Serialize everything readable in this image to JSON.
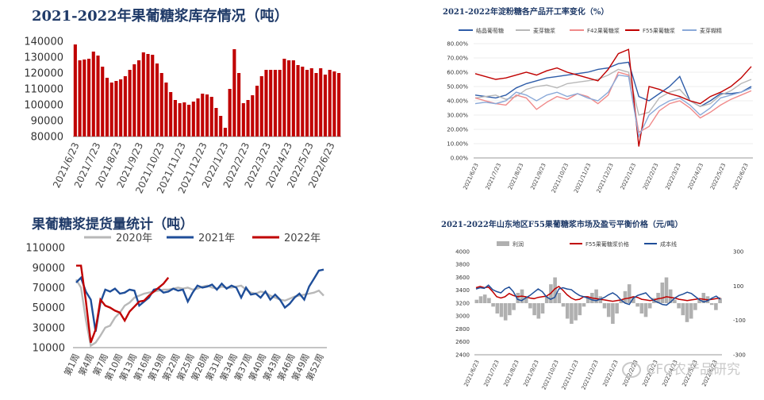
{
  "watermark": "CFC农产品研究",
  "watermark_icon": "wechat-icon",
  "chart_data": [
    {
      "id": "c1",
      "type": "bar",
      "title": "2021-2022年果葡糖浆库存情况（吨）",
      "ylim": [
        80000,
        140000
      ],
      "yticks": [
        "80000",
        "90000",
        "100000",
        "110000",
        "120000",
        "130000",
        "140000"
      ],
      "xticks": [
        "2021/6/23",
        "2021/7/23",
        "2021/8/23",
        "2021/9/23",
        "2021/10/23",
        "2021/11/23",
        "2021/12/23",
        "2022/1/23",
        "2022/2/23",
        "2022/3/23",
        "2022/4/23",
        "2022/5/23",
        "2022/6/23"
      ],
      "color": "#c00000",
      "values": [
        138000,
        128000,
        128500,
        129000,
        133500,
        131000,
        124000,
        117000,
        114000,
        115000,
        116000,
        118000,
        122000,
        125500,
        128000,
        133000,
        132000,
        131500,
        126000,
        120000,
        114000,
        108000,
        103000,
        101000,
        101500,
        100000,
        102000,
        104000,
        107000,
        106500,
        105000,
        98000,
        93000,
        85500,
        110000,
        135000,
        120000,
        101000,
        103000,
        106000,
        112000,
        118000,
        122000,
        122000,
        122000,
        122000,
        129000,
        128000,
        128000,
        125000,
        124000,
        122000,
        123000,
        120000,
        123000,
        119000,
        122000,
        121000,
        120000
      ]
    },
    {
      "id": "c2",
      "type": "line",
      "title": "2021-2022年淀粉糖各产品开工率变化（%）",
      "ylim": [
        0,
        80
      ],
      "yticks": [
        "0.00%",
        "10.00%",
        "20.00%",
        "30.00%",
        "40.00%",
        "50.00%",
        "60.00%",
        "70.00%",
        "80.00%"
      ],
      "xticks": [
        "2021/6/23",
        "2021/7/23",
        "2021/8/23",
        "2021/9/23",
        "2021/10/23",
        "2021/11/23",
        "2021/12/23",
        "2022/1/23",
        "2022/2/23",
        "2022/3/23",
        "2022/4/23",
        "2022/5/23",
        "2022/6/23"
      ],
      "series": [
        {
          "name": "结晶葡萄糖",
          "color": "#2e5ca8",
          "values": [
            44,
            43,
            42,
            44,
            49,
            52,
            54,
            56,
            57,
            58,
            59,
            60,
            62,
            63,
            66,
            67,
            43,
            40,
            45,
            50,
            57,
            40,
            36,
            40,
            45,
            45,
            46,
            50
          ]
        },
        {
          "name": "麦芽糖浆",
          "color": "#b8b8b8",
          "values": [
            42,
            43,
            44,
            41,
            43,
            48,
            50,
            51,
            49,
            52,
            53,
            54,
            55,
            58,
            62,
            60,
            30,
            32,
            42,
            46,
            48,
            40,
            36,
            38,
            44,
            47,
            52,
            55
          ]
        },
        {
          "name": "F42果葡糖浆",
          "color": "#f08a8a",
          "values": [
            42,
            40,
            38,
            37,
            44,
            42,
            34,
            39,
            43,
            41,
            45,
            43,
            38,
            44,
            60,
            58,
            18,
            22,
            33,
            38,
            40,
            35,
            28,
            32,
            37,
            41,
            44,
            47
          ]
        },
        {
          "name": "F55果葡糖浆",
          "color": "#c00000",
          "values": [
            59,
            57,
            55,
            56,
            58,
            60,
            58,
            61,
            63,
            60,
            58,
            56,
            54,
            62,
            73,
            76,
            8,
            50,
            48,
            45,
            43,
            40,
            38,
            43,
            46,
            50,
            56,
            64
          ]
        },
        {
          "name": "麦芽糊精",
          "color": "#8aa9d8",
          "values": [
            38,
            39,
            38,
            40,
            46,
            44,
            40,
            44,
            46,
            43,
            45,
            42,
            40,
            46,
            58,
            57,
            15,
            30,
            36,
            40,
            42,
            37,
            30,
            35,
            42,
            44,
            46,
            49
          ]
        }
      ]
    },
    {
      "id": "c3",
      "type": "line",
      "title": "果葡糖浆提货量统计（吨）",
      "ylim": [
        10000,
        110000
      ],
      "yticks": [
        "10000",
        "30000",
        "50000",
        "70000",
        "90000",
        "110000"
      ],
      "xticks": [
        "第1周",
        "第4周",
        "第7周",
        "第10周",
        "第13周",
        "第16周",
        "第19周",
        "第22周",
        "第25周",
        "第28周",
        "第31周",
        "第34周",
        "第37周",
        "第40周",
        "第43周",
        "第46周",
        "第49周",
        "第52周"
      ],
      "series": [
        {
          "name": "2020年",
          "color": "#b8b8b8",
          "values": [
            78000,
            70000,
            38000,
            12000,
            15000,
            22000,
            30000,
            32000,
            40000,
            45000,
            52000,
            55000,
            60000,
            62000,
            64000,
            65000,
            66000,
            67000,
            68000,
            68000,
            69000,
            70000,
            69000,
            70000,
            68000,
            69000,
            71000,
            72000,
            70000,
            69000,
            71000,
            70000,
            70000,
            71000,
            72000,
            68000,
            65000,
            64000,
            66000,
            65000,
            62000,
            60000,
            58000,
            57000,
            59000,
            61000,
            62000,
            63000,
            64000,
            65000,
            67000,
            62000
          ]
        },
        {
          "name": "2021年",
          "color": "#1f4e99",
          "values": [
            75000,
            80000,
            66000,
            58000,
            26000,
            55000,
            68000,
            66000,
            69000,
            64000,
            65000,
            68000,
            67000,
            52000,
            56000,
            60000,
            68000,
            69000,
            65000,
            66000,
            69000,
            67000,
            68000,
            56000,
            65000,
            72000,
            70000,
            71000,
            73000,
            68000,
            74000,
            69000,
            72000,
            70000,
            60000,
            70000,
            63000,
            64000,
            60000,
            66000,
            58000,
            63000,
            58000,
            50000,
            54000,
            60000,
            64000,
            58000,
            71000,
            79000,
            87000,
            88000
          ]
        },
        {
          "name": "2022年",
          "color": "#c00000",
          "values": [
            92000,
            92000,
            57000,
            15000,
            28000,
            58000,
            52000,
            50000,
            47000,
            45000,
            37000,
            46000,
            51000,
            56000,
            57000,
            62000,
            66000,
            70000,
            74000,
            80000
          ]
        }
      ]
    },
    {
      "id": "c4",
      "type": "combo",
      "title": "2021-2022年山东地区F55果葡糖浆市场及盈亏平衡价格（元/吨）",
      "ylim": [
        2400,
        4000
      ],
      "ylim_right": [
        -300,
        300
      ],
      "yticks": [
        "2400",
        "2600",
        "2800",
        "3000",
        "3200",
        "3400",
        "3600",
        "3800",
        "4000"
      ],
      "yticks_right": [
        "-300",
        "-100",
        "100",
        "300"
      ],
      "xticks": [
        "2021/6/23",
        "2021/7/23",
        "2021/8/23",
        "2021/9/23",
        "2021/10/23",
        "2021/11/23",
        "2021/12/23",
        "2022/1/23",
        "2022/2/23",
        "2022/3/23",
        "2022/4/23",
        "2022/5/23",
        "2022/6/23"
      ],
      "bars": {
        "name": "利润",
        "color": "#b0b0b0",
        "values": [
          20,
          40,
          50,
          30,
          -20,
          -60,
          -80,
          -100,
          -70,
          -40,
          60,
          80,
          40,
          -30,
          -70,
          -90,
          -60,
          40,
          110,
          150,
          60,
          -20,
          -90,
          -120,
          -100,
          -70,
          -20,
          30,
          60,
          80,
          40,
          -30,
          -80,
          -120,
          -60,
          20,
          70,
          110,
          40,
          -20,
          -60,
          -80,
          -30,
          30,
          60,
          120,
          150,
          80,
          20,
          -30,
          -70,
          -110,
          -90,
          -40,
          20,
          60,
          40,
          -10,
          -40,
          30
        ]
      },
      "series": [
        {
          "name": "F55果葡糖浆价格",
          "color": "#c00000",
          "values": [
            3440,
            3460,
            3440,
            3450,
            3380,
            3300,
            3280,
            3300,
            3350,
            3320,
            3300,
            3310,
            3300,
            3280,
            3270,
            3290,
            3300,
            3310,
            3350,
            3420,
            3460,
            3400,
            3330,
            3280,
            3250,
            3260,
            3300,
            3300,
            3280,
            3270,
            3260,
            3250,
            3240,
            3230,
            3240,
            3250,
            3270,
            3280,
            3300,
            3290,
            3260,
            3250,
            3240,
            3250,
            3270,
            3280,
            3300,
            3290,
            3280,
            3260,
            3250,
            3240,
            3250,
            3260,
            3270,
            3260,
            3250,
            3260,
            3270,
            3280
          ]
        },
        {
          "name": "成本线",
          "color": "#1f4e99",
          "values": [
            3420,
            3440,
            3430,
            3480,
            3410,
            3380,
            3360,
            3420,
            3450,
            3380,
            3260,
            3240,
            3280,
            3320,
            3370,
            3420,
            3380,
            3300,
            3260,
            3290,
            3420,
            3440,
            3420,
            3410,
            3360,
            3320,
            3300,
            3280,
            3250,
            3240,
            3260,
            3290,
            3330,
            3360,
            3320,
            3250,
            3200,
            3180,
            3280,
            3320,
            3340,
            3360,
            3290,
            3240,
            3210,
            3180,
            3170,
            3220,
            3280,
            3320,
            3340,
            3370,
            3350,
            3300,
            3250,
            3220,
            3240,
            3280,
            3310,
            3260
          ]
        }
      ]
    }
  ]
}
